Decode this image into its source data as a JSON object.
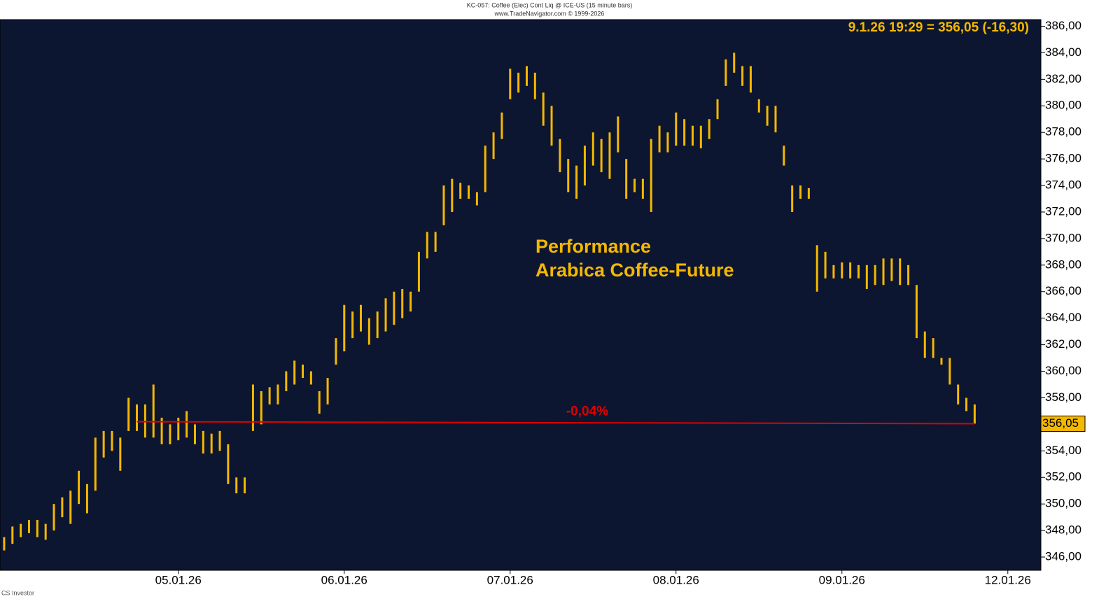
{
  "chart_data": {
    "type": "ohlc",
    "title": "KC-057:  Coffee (Elec) Cont Liq @ ICE-US  (15 minute bars)",
    "subtitle": "www.TradeNavigator.com © 1999-2026",
    "quote": "9.1.26 19:29 = 356,05 (-16,30)",
    "annotation": [
      "Performance",
      "Arabica Coffee-Future"
    ],
    "footer": "CS Investor",
    "color": "#f5b800",
    "categories": [
      null,
      null,
      null,
      null,
      null,
      null,
      null,
      null,
      null,
      null,
      null,
      null,
      null,
      null,
      null,
      null,
      null,
      null,
      null,
      null,
      null,
      "05.01.26",
      null,
      null,
      null,
      null,
      null,
      null,
      null,
      null,
      null,
      null,
      null,
      null,
      null,
      null,
      null,
      null,
      null,
      null,
      null,
      "06.01.26",
      null,
      null,
      null,
      null,
      null,
      null,
      null,
      null,
      null,
      null,
      null,
      null,
      null,
      null,
      null,
      null,
      null,
      null,
      null,
      "07.01.26",
      null,
      null,
      null,
      null,
      null,
      null,
      null,
      null,
      null,
      null,
      null,
      null,
      null,
      null,
      null,
      null,
      null,
      null,
      null,
      "08.01.26",
      null,
      null,
      null,
      null,
      null,
      null,
      null,
      null,
      null,
      null,
      null,
      null,
      null,
      null,
      null,
      null,
      null,
      null,
      null,
      "09.01.26",
      null,
      null,
      null,
      null,
      null,
      null,
      null,
      null,
      null,
      null,
      null,
      null,
      null,
      null,
      null,
      null,
      null,
      null,
      null,
      "12.01.26"
    ],
    "highs": [
      347.5,
      348.3,
      348.5,
      348.8,
      348.8,
      348.5,
      350,
      350.5,
      351,
      352.5,
      351.5,
      355,
      355.5,
      355.5,
      355,
      358,
      357.5,
      357.5,
      359,
      356.5,
      356,
      356.5,
      357,
      356,
      355.5,
      355.3,
      355.5,
      354.5,
      352,
      352,
      359,
      358.5,
      358.8,
      359,
      360,
      360.8,
      360.5,
      360,
      358.5,
      359.5,
      362.5,
      365,
      364.5,
      365,
      364,
      364.5,
      365.5,
      366,
      366.2,
      366,
      369,
      370.5,
      370.5,
      374,
      374.5,
      374.2,
      374,
      373.5,
      377,
      378,
      379.5,
      382.8,
      382.5,
      383,
      382.5,
      381,
      380,
      377.5,
      376,
      375.5,
      377,
      378,
      377.5,
      378,
      379.2,
      376,
      374.5,
      374.5,
      377.5,
      378.5,
      378,
      379.5,
      379,
      378.5,
      378.5,
      379,
      380.5,
      383.5,
      384,
      383,
      383,
      380.5,
      380,
      380,
      377,
      374,
      374,
      373.8,
      369.5,
      369,
      368,
      368.2,
      368.2,
      368,
      368,
      368,
      368.5,
      368.5,
      368.5,
      368,
      366.5,
      363,
      362.5,
      361,
      361,
      359,
      358,
      357.5,
      null,
      null,
      null,
      null
    ],
    "lows": [
      346.5,
      347,
      347.5,
      347.8,
      347.5,
      347.3,
      348,
      349,
      348.5,
      350,
      349.3,
      351,
      353.5,
      354,
      352.5,
      355.5,
      355.5,
      355,
      355,
      354.5,
      354.5,
      354.8,
      355,
      354.5,
      353.8,
      353.8,
      354,
      351.5,
      350.8,
      350.8,
      355.5,
      356,
      357.5,
      357.5,
      358.5,
      359,
      359.5,
      359,
      356.8,
      357.5,
      360.5,
      361.5,
      362.5,
      363,
      362,
      362.5,
      363,
      363.5,
      364,
      364.5,
      366,
      368.5,
      369,
      371,
      372,
      373,
      373,
      372.5,
      373.5,
      376,
      377.5,
      380.5,
      381,
      381.5,
      380.5,
      378.5,
      377,
      375,
      373.5,
      373,
      374,
      375.5,
      375,
      374.5,
      376.5,
      373,
      373.5,
      373,
      372,
      376.5,
      376.5,
      377,
      377,
      377,
      376.8,
      377.5,
      379,
      381.5,
      382.5,
      381.5,
      381,
      379.5,
      378.5,
      378,
      375.5,
      372,
      373,
      373,
      366,
      367,
      367,
      367,
      367,
      367,
      366.2,
      366.5,
      366.5,
      366.8,
      366.5,
      366.5,
      362.5,
      361,
      361,
      360.5,
      359,
      357.5,
      357,
      356.05,
      null,
      null,
      null,
      null
    ],
    "reference_line": {
      "label": "-0,04%",
      "color": "#e00000",
      "start_index": 16,
      "start_value": 356.2,
      "end_index": 117,
      "end_value": 356.05
    },
    "last_price": {
      "value": 356.05,
      "label": "356,05"
    },
    "ylim": [
      345,
      386.5
    ],
    "yticks": [
      {
        "value": 346,
        "label": "346,00"
      },
      {
        "value": 348,
        "label": "348,00"
      },
      {
        "value": 350,
        "label": "350,00"
      },
      {
        "value": 352,
        "label": "352,00"
      },
      {
        "value": 354,
        "label": "354,00"
      },
      {
        "value": 356,
        "label": "356,00"
      },
      {
        "value": 358,
        "label": "358,00"
      },
      {
        "value": 360,
        "label": "360,00"
      },
      {
        "value": 362,
        "label": "362,00"
      },
      {
        "value": 364,
        "label": "364,00"
      },
      {
        "value": 366,
        "label": "366,00"
      },
      {
        "value": 368,
        "label": "368,00"
      },
      {
        "value": 370,
        "label": "370,00"
      },
      {
        "value": 372,
        "label": "372,00"
      },
      {
        "value": 374,
        "label": "374,00"
      },
      {
        "value": 376,
        "label": "376,00"
      },
      {
        "value": 378,
        "label": "378,00"
      },
      {
        "value": 380,
        "label": "380,00"
      },
      {
        "value": 382,
        "label": "382,00"
      },
      {
        "value": 384,
        "label": "384,00"
      },
      {
        "value": 386,
        "label": "386,00"
      }
    ]
  }
}
